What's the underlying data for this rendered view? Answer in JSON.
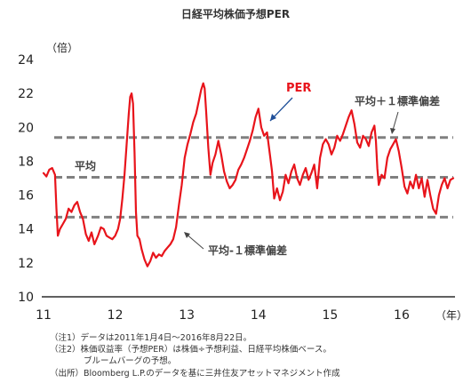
{
  "chart_data": {
    "type": "line",
    "title": "日経平均株価予想PER",
    "y_unit": "（倍）",
    "x_unit": "（年）",
    "ylim": [
      10,
      24
    ],
    "yticks": [
      10,
      12,
      14,
      16,
      18,
      20,
      22,
      24
    ],
    "xlim": [
      2011,
      2016.72
    ],
    "xticks": [
      {
        "value": 2011,
        "label": "11"
      },
      {
        "value": 2012,
        "label": "12"
      },
      {
        "value": 2013,
        "label": "13"
      },
      {
        "value": 2014,
        "label": "14"
      },
      {
        "value": 2015,
        "label": "15"
      },
      {
        "value": 2016,
        "label": "16"
      }
    ],
    "grid": false,
    "series": [
      {
        "name": "PER",
        "color": "#e8141b",
        "points": [
          [
            2011.0,
            17.3
          ],
          [
            2011.04,
            17.1
          ],
          [
            2011.08,
            17.5
          ],
          [
            2011.12,
            17.6
          ],
          [
            2011.16,
            17.2
          ],
          [
            2011.18,
            15.2
          ],
          [
            2011.2,
            13.6
          ],
          [
            2011.23,
            14.0
          ],
          [
            2011.27,
            14.3
          ],
          [
            2011.31,
            14.6
          ],
          [
            2011.35,
            15.2
          ],
          [
            2011.39,
            15.0
          ],
          [
            2011.43,
            15.4
          ],
          [
            2011.47,
            15.6
          ],
          [
            2011.51,
            15.0
          ],
          [
            2011.55,
            14.6
          ],
          [
            2011.59,
            13.7
          ],
          [
            2011.63,
            13.3
          ],
          [
            2011.67,
            13.8
          ],
          [
            2011.71,
            13.1
          ],
          [
            2011.76,
            13.6
          ],
          [
            2011.8,
            14.1
          ],
          [
            2011.84,
            14.0
          ],
          [
            2011.88,
            13.6
          ],
          [
            2011.92,
            13.5
          ],
          [
            2011.96,
            13.4
          ],
          [
            2012.0,
            13.6
          ],
          [
            2012.04,
            14.0
          ],
          [
            2012.07,
            14.6
          ],
          [
            2012.1,
            15.8
          ],
          [
            2012.13,
            17.2
          ],
          [
            2012.16,
            19.0
          ],
          [
            2012.19,
            20.8
          ],
          [
            2012.21,
            21.8
          ],
          [
            2012.23,
            22.0
          ],
          [
            2012.25,
            21.4
          ],
          [
            2012.27,
            18.5
          ],
          [
            2012.29,
            15.0
          ],
          [
            2012.31,
            13.6
          ],
          [
            2012.34,
            13.4
          ],
          [
            2012.37,
            12.8
          ],
          [
            2012.41,
            12.2
          ],
          [
            2012.45,
            11.8
          ],
          [
            2012.49,
            12.1
          ],
          [
            2012.53,
            12.6
          ],
          [
            2012.57,
            12.3
          ],
          [
            2012.61,
            12.5
          ],
          [
            2012.65,
            12.4
          ],
          [
            2012.69,
            12.7
          ],
          [
            2012.73,
            12.9
          ],
          [
            2012.77,
            13.1
          ],
          [
            2012.81,
            13.4
          ],
          [
            2012.85,
            14.1
          ],
          [
            2012.89,
            15.4
          ],
          [
            2012.93,
            16.6
          ],
          [
            2012.97,
            18.2
          ],
          [
            2013.01,
            19.0
          ],
          [
            2013.05,
            19.6
          ],
          [
            2013.09,
            20.3
          ],
          [
            2013.13,
            20.8
          ],
          [
            2013.17,
            21.6
          ],
          [
            2013.2,
            22.2
          ],
          [
            2013.23,
            22.6
          ],
          [
            2013.25,
            22.3
          ],
          [
            2013.27,
            21.0
          ],
          [
            2013.3,
            18.8
          ],
          [
            2013.33,
            17.2
          ],
          [
            2013.36,
            17.9
          ],
          [
            2013.4,
            18.4
          ],
          [
            2013.44,
            19.2
          ],
          [
            2013.48,
            18.4
          ],
          [
            2013.52,
            17.4
          ],
          [
            2013.56,
            16.8
          ],
          [
            2013.6,
            16.4
          ],
          [
            2013.64,
            16.6
          ],
          [
            2013.68,
            16.9
          ],
          [
            2013.72,
            17.5
          ],
          [
            2013.76,
            17.8
          ],
          [
            2013.8,
            18.2
          ],
          [
            2013.84,
            18.7
          ],
          [
            2013.88,
            19.2
          ],
          [
            2013.92,
            19.8
          ],
          [
            2013.96,
            20.6
          ],
          [
            2014.0,
            21.1
          ],
          [
            2014.04,
            20.0
          ],
          [
            2014.08,
            19.5
          ],
          [
            2014.12,
            19.7
          ],
          [
            2014.16,
            18.4
          ],
          [
            2014.19,
            17.4
          ],
          [
            2014.22,
            15.8
          ],
          [
            2014.26,
            16.4
          ],
          [
            2014.3,
            15.7
          ],
          [
            2014.34,
            16.2
          ],
          [
            2014.38,
            17.2
          ],
          [
            2014.42,
            16.7
          ],
          [
            2014.46,
            17.4
          ],
          [
            2014.5,
            17.8
          ],
          [
            2014.54,
            17.0
          ],
          [
            2014.58,
            16.6
          ],
          [
            2014.62,
            17.2
          ],
          [
            2014.66,
            17.6
          ],
          [
            2014.7,
            16.9
          ],
          [
            2014.74,
            17.3
          ],
          [
            2014.78,
            17.8
          ],
          [
            2014.82,
            16.4
          ],
          [
            2014.86,
            18.2
          ],
          [
            2014.9,
            19.0
          ],
          [
            2014.94,
            19.3
          ],
          [
            2014.98,
            19.0
          ],
          [
            2015.02,
            18.4
          ],
          [
            2015.06,
            18.8
          ],
          [
            2015.1,
            19.5
          ],
          [
            2015.14,
            19.2
          ],
          [
            2015.18,
            19.6
          ],
          [
            2015.22,
            20.1
          ],
          [
            2015.26,
            20.6
          ],
          [
            2015.3,
            21.0
          ],
          [
            2015.34,
            20.2
          ],
          [
            2015.38,
            19.1
          ],
          [
            2015.42,
            18.8
          ],
          [
            2015.46,
            19.5
          ],
          [
            2015.5,
            19.3
          ],
          [
            2015.54,
            18.9
          ],
          [
            2015.58,
            19.7
          ],
          [
            2015.62,
            20.1
          ],
          [
            2015.64,
            19.2
          ],
          [
            2015.66,
            17.6
          ],
          [
            2015.68,
            16.6
          ],
          [
            2015.72,
            17.2
          ],
          [
            2015.76,
            17.0
          ],
          [
            2015.8,
            18.2
          ],
          [
            2015.84,
            18.7
          ],
          [
            2015.88,
            19.0
          ],
          [
            2015.92,
            19.3
          ],
          [
            2015.96,
            18.6
          ],
          [
            2016.0,
            17.6
          ],
          [
            2016.04,
            16.5
          ],
          [
            2016.08,
            16.1
          ],
          [
            2016.12,
            16.8
          ],
          [
            2016.16,
            16.4
          ],
          [
            2016.2,
            17.2
          ],
          [
            2016.24,
            16.4
          ],
          [
            2016.28,
            17.0
          ],
          [
            2016.32,
            15.9
          ],
          [
            2016.36,
            16.9
          ],
          [
            2016.4,
            16.0
          ],
          [
            2016.44,
            15.2
          ],
          [
            2016.48,
            14.9
          ],
          [
            2016.52,
            16.0
          ],
          [
            2016.56,
            16.6
          ],
          [
            2016.6,
            17.0
          ],
          [
            2016.64,
            16.4
          ],
          [
            2016.68,
            16.9
          ],
          [
            2016.72,
            17.0
          ]
        ]
      }
    ],
    "reference_lines": [
      {
        "label": "平均＋１標準偏差",
        "value": 19.4
      },
      {
        "label": "平均",
        "value": 17.05
      },
      {
        "label": "平均-１標準偏差",
        "value": 14.7
      }
    ],
    "annotations": [
      {
        "text": "PER"
      },
      {
        "text": "平均＋１標準偏差"
      },
      {
        "text": "平均"
      },
      {
        "text": "平均-１標準偏差"
      }
    ],
    "notes": [
      "（注1）データは2011年1月4日～2016年8月22日。",
      "（注2）株価収益率（予想PER）は株価÷予想利益、日経平均株価ベース。",
      "ブルームバーグの予想。",
      "（出所）Bloomberg L.P.のデータを基に三井住友アセットマネジメント作成"
    ],
    "line_color": "#e8141b",
    "ref_line_color": "#808080"
  }
}
